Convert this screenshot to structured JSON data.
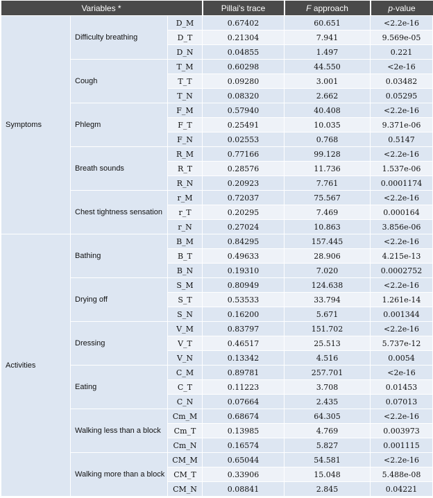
{
  "headers": {
    "variables": "Variables *",
    "pillai": "Pillai's trace",
    "f_italic": "F",
    "f_rest": " approach",
    "p_italic": "p",
    "p_rest": "-value"
  },
  "groups": [
    {
      "category": "Symptoms",
      "vars": [
        {
          "name": "Difficulty breathing",
          "rows": [
            {
              "code": "D_M",
              "pillai": "0.67402",
              "f": "60.651",
              "p": "<2.2e-16"
            },
            {
              "code": "D_T",
              "pillai": "0.21304",
              "f": "7.941",
              "p": "9.569e-05"
            },
            {
              "code": "D_N",
              "pillai": "0.04855",
              "f": "1.497",
              "p": "0.221"
            }
          ]
        },
        {
          "name": "Cough",
          "rows": [
            {
              "code": "T_M",
              "pillai": "0.60298",
              "f": "44.550",
              "p": "<2e-16"
            },
            {
              "code": "T_T",
              "pillai": "0.09280",
              "f": "3.001",
              "p": "0.03482"
            },
            {
              "code": "T_N",
              "pillai": "0.08320",
              "f": "2.662",
              "p": "0.05295"
            }
          ]
        },
        {
          "name": "Phlegm",
          "rows": [
            {
              "code": "F_M",
              "pillai": "0.57940",
              "f": "40.408",
              "p": "<2.2e-16"
            },
            {
              "code": "F_T",
              "pillai": "0.25491",
              "f": "10.035",
              "p": "9.371e-06"
            },
            {
              "code": "F_N",
              "pillai": "0.02553",
              "f": "0.768",
              "p": "0.5147"
            }
          ]
        },
        {
          "name": "Breath sounds",
          "rows": [
            {
              "code": "R_M",
              "pillai": "0.77166",
              "f": "99.128",
              "p": "<2.2e-16"
            },
            {
              "code": "R_T",
              "pillai": "0.28576",
              "f": "11.736",
              "p": "1.537e-06"
            },
            {
              "code": "R_N",
              "pillai": "0.20923",
              "f": "7.761",
              "p": "0.0001174"
            }
          ]
        },
        {
          "name": "Chest tightness sensation",
          "rows": [
            {
              "code": "r_M",
              "pillai": "0.72037",
              "f": "75.567",
              "p": "<2.2e-16"
            },
            {
              "code": "r_T",
              "pillai": "0.20295",
              "f": "7.469",
              "p": "0.000164"
            },
            {
              "code": "r_N",
              "pillai": "0.27024",
              "f": "10.863",
              "p": "3.856e-06"
            }
          ]
        }
      ]
    },
    {
      "category": "Activities",
      "vars": [
        {
          "name": "Bathing",
          "rows": [
            {
              "code": "B_M",
              "pillai": "0.84295",
              "f": "157.445",
              "p": "<2.2e-16"
            },
            {
              "code": "B_T",
              "pillai": "0.49633",
              "f": "28.906",
              "p": "4.215e-13"
            },
            {
              "code": "B_N",
              "pillai": "0.19310",
              "f": "7.020",
              "p": "0.0002752"
            }
          ]
        },
        {
          "name": "Drying off",
          "rows": [
            {
              "code": "S_M",
              "pillai": "0.80949",
              "f": "124.638",
              "p": "<2.2e-16"
            },
            {
              "code": "S_T",
              "pillai": "0.53533",
              "f": "33.794",
              "p": "1.261e-14"
            },
            {
              "code": "S_N",
              "pillai": "0.16200",
              "f": "5.671",
              "p": "0.001344"
            }
          ]
        },
        {
          "name": "Dressing",
          "rows": [
            {
              "code": "V_M",
              "pillai": "0.83797",
              "f": "151.702",
              "p": "<2.2e-16"
            },
            {
              "code": "V_T",
              "pillai": "0.46517",
              "f": "25.513",
              "p": "5.737e-12"
            },
            {
              "code": "V_N",
              "pillai": "0.13342",
              "f": "4.516",
              "p": "0.0054"
            }
          ]
        },
        {
          "name": "Eating",
          "rows": [
            {
              "code": "C_M",
              "pillai": "0.89781",
              "f": "257.701",
              "p": "<2e-16"
            },
            {
              "code": "C_T",
              "pillai": "0.11223",
              "f": "3.708",
              "p": "0.01453"
            },
            {
              "code": "C_N",
              "pillai": "0.07664",
              "f": "2.435",
              "p": "0.07013"
            }
          ]
        },
        {
          "name": "Walking less than a block",
          "rows": [
            {
              "code": "Cm_M",
              "pillai": "0.68674",
              "f": "64.305",
              "p": "<2.2e-16"
            },
            {
              "code": "Cm_T",
              "pillai": "0.13985",
              "f": "4.769",
              "p": "0.003973"
            },
            {
              "code": "Cm_N",
              "pillai": "0.16574",
              "f": "5.827",
              "p": "0.001115"
            }
          ]
        },
        {
          "name": "Walking more than a block",
          "rows": [
            {
              "code": "CM_M",
              "pillai": "0.65044",
              "f": "54.581",
              "p": "<2.2e-16"
            },
            {
              "code": "CM_T",
              "pillai": "0.33906",
              "f": "15.048",
              "p": "5.488e-08"
            },
            {
              "code": "CM_N",
              "pillai": "0.08841",
              "f": "2.845",
              "p": "0.04221"
            }
          ]
        }
      ]
    }
  ]
}
